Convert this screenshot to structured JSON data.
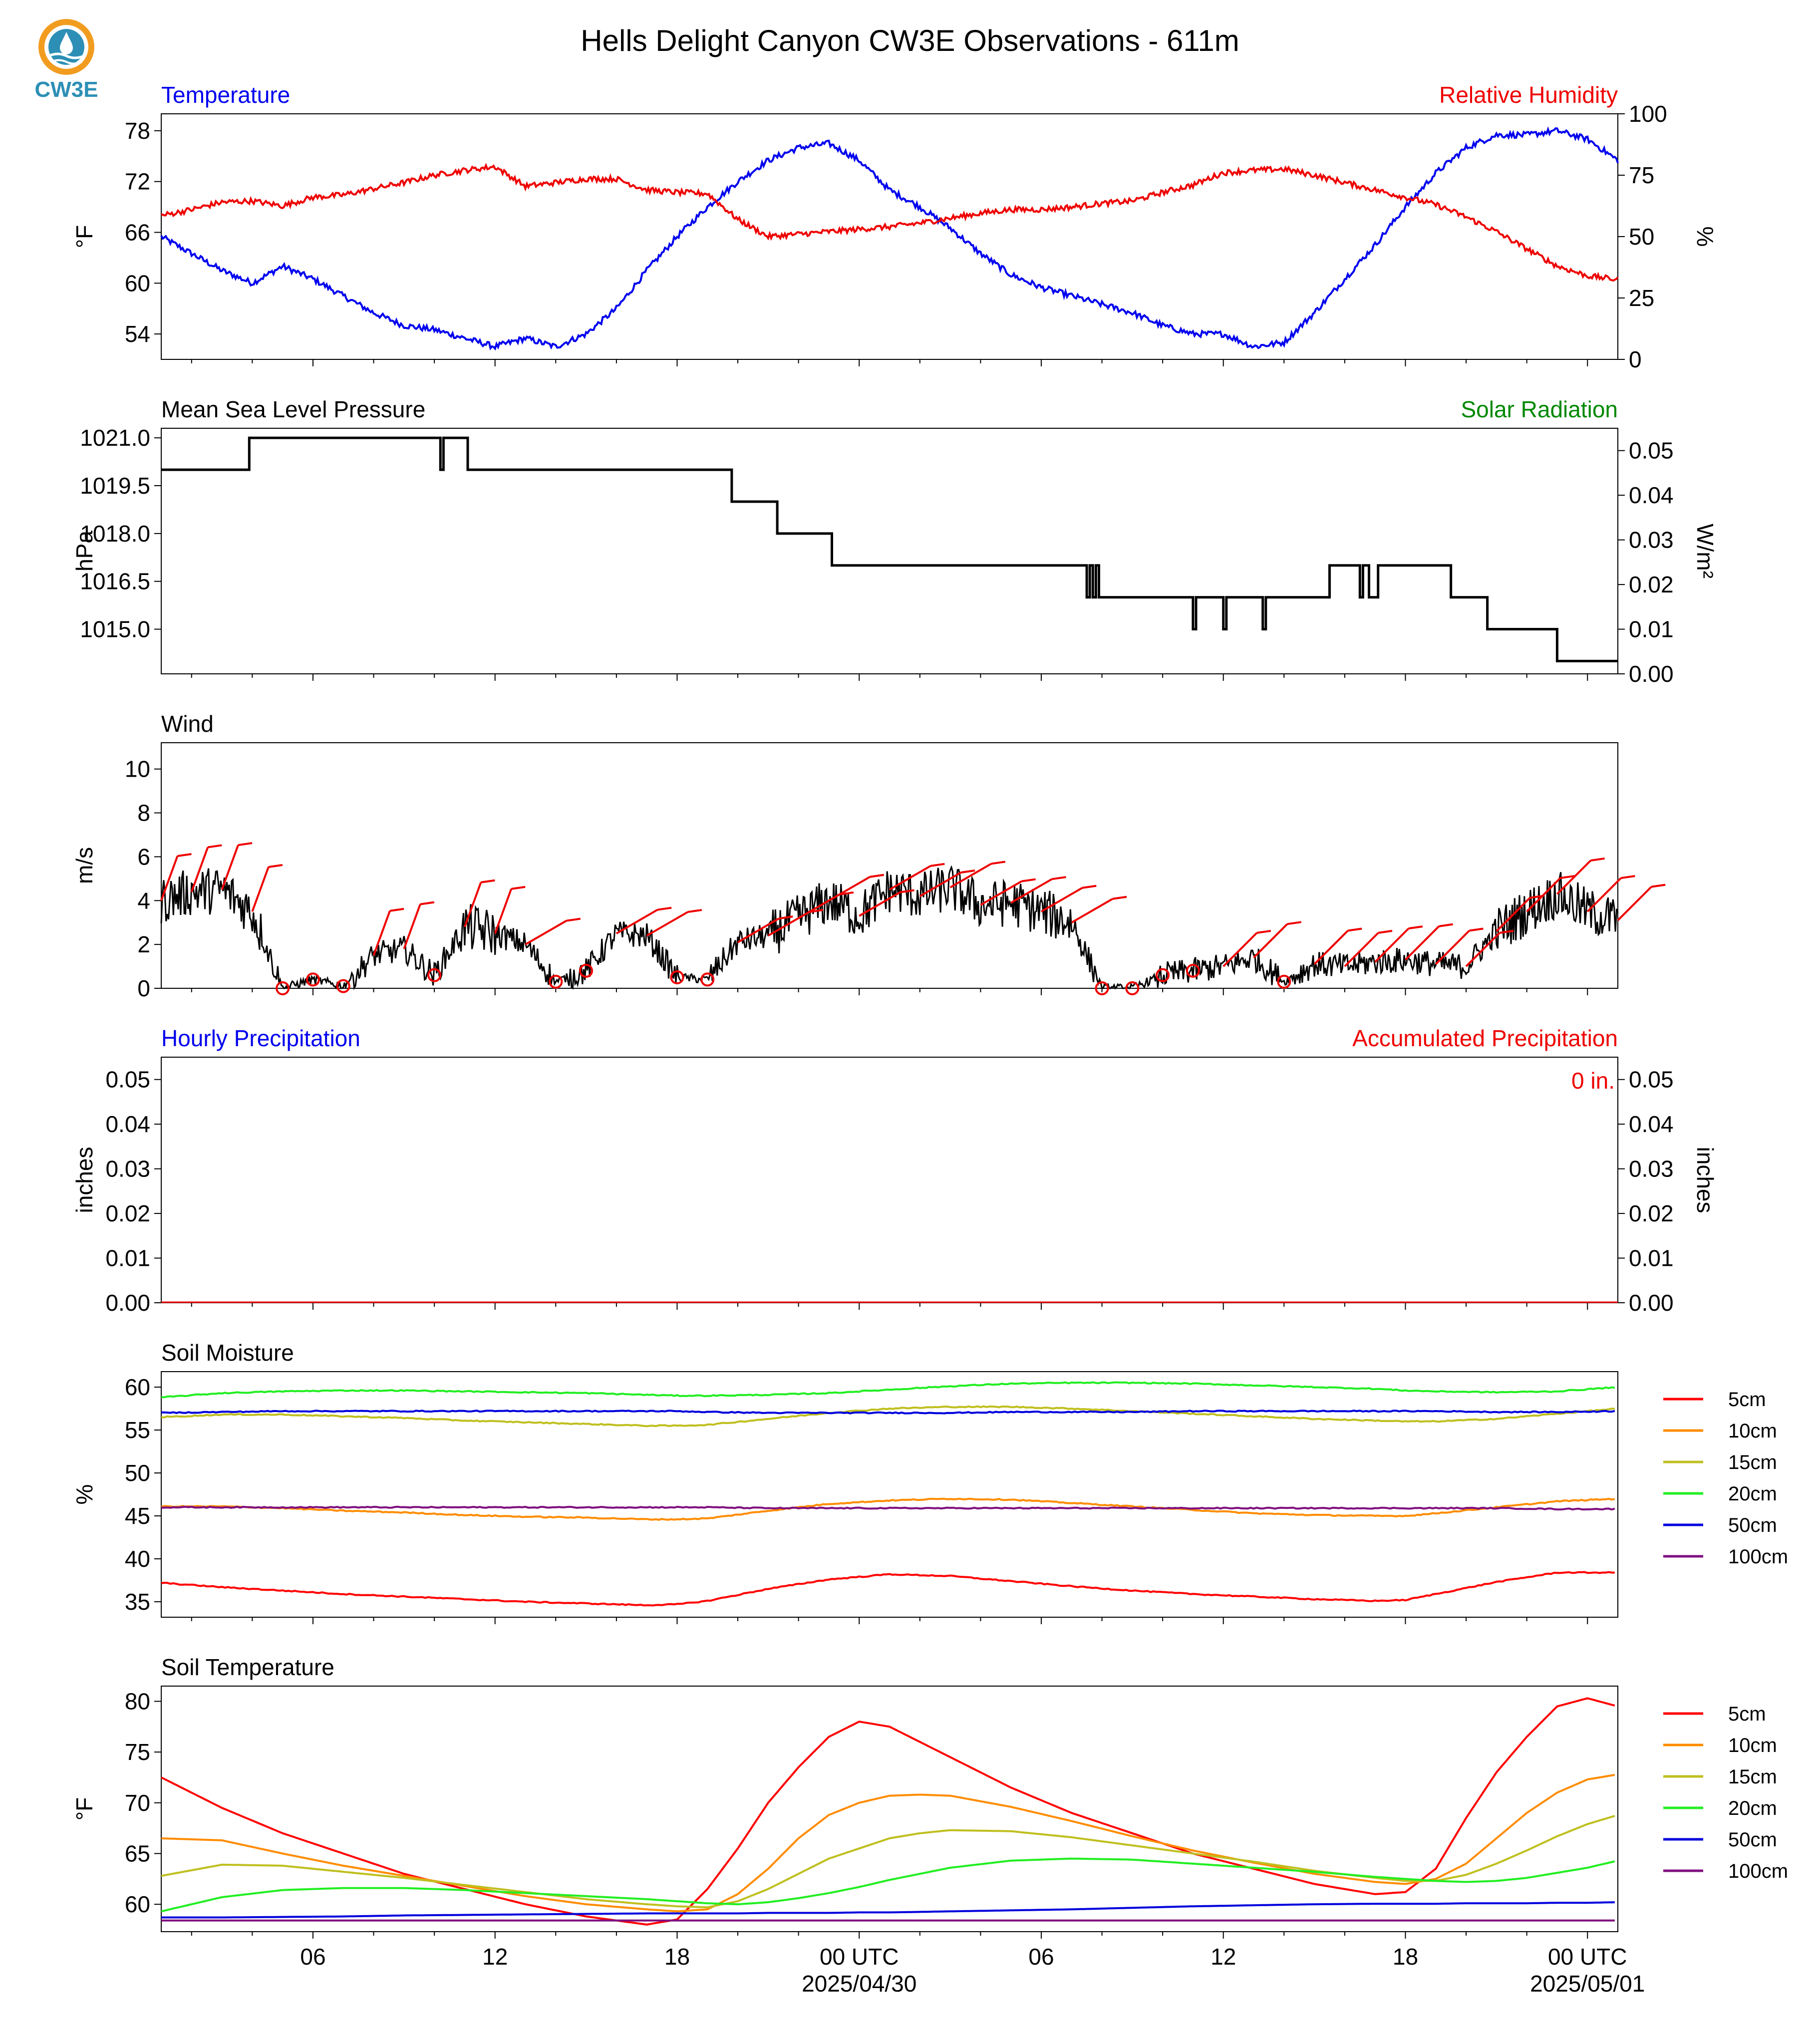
{
  "title": "Hells Delight Canyon CW3E Observations - 611m",
  "logo": {
    "text": "CW3E",
    "icon": "cw3e-logo-icon"
  },
  "colors": {
    "blue": "#0000ee",
    "red": "#ee0000",
    "green": "#008800",
    "black": "#000000",
    "soil": {
      "5cm": "#ff0000",
      "10cm": "#ff8c00",
      "15cm": "#bfbf1f",
      "20cm": "#22ee22",
      "50cm": "#0000dd",
      "100cm": "#7f0f7f"
    }
  },
  "x_axis": {
    "start": "2025-04-29T01:00Z",
    "end": "2025-05-01T01:00Z",
    "tick_labels": [
      "06",
      "12",
      "18",
      "00 UTC",
      "06",
      "12",
      "18",
      "00 UTC"
    ],
    "date_labels": [
      "2025/04/30",
      "2025/05/01"
    ]
  },
  "chart_data": [
    {
      "type": "line",
      "panel": "temperature-humidity",
      "left_title": "Temperature",
      "right_title": "Relative Humidity",
      "ylabel_left": "°F",
      "ylabel_right": "%",
      "ylim_left": [
        51,
        80
      ],
      "ylim_right": [
        0,
        100
      ],
      "yticks_left": [
        54,
        60,
        66,
        72,
        78
      ],
      "yticks_right": [
        0,
        25,
        50,
        75,
        100
      ],
      "hours": [
        0,
        1,
        2,
        3,
        4,
        5,
        6,
        7,
        8,
        9,
        10,
        11,
        12,
        13,
        14,
        15,
        16,
        17,
        18,
        19,
        20,
        21,
        22,
        23,
        24,
        25,
        26,
        27,
        28,
        29,
        30,
        31,
        32,
        33,
        34,
        35,
        36,
        37,
        38,
        39,
        40,
        41,
        42,
        43,
        44,
        45,
        46,
        47,
        48
      ],
      "series": [
        {
          "name": "Temperature",
          "axis": "left",
          "color": "blue",
          "values": [
            65.5,
            63.5,
            61.5,
            60.0,
            62.0,
            60.5,
            58.5,
            56.5,
            55.0,
            54.5,
            53.5,
            52.5,
            53.5,
            52.5,
            54.0,
            57.0,
            61.5,
            65.5,
            69.0,
            72.0,
            74.5,
            76.0,
            76.5,
            74.5,
            71.0,
            69.0,
            66.5,
            63.5,
            61.0,
            59.5,
            58.5,
            57.5,
            56.5,
            55.0,
            54.0,
            54.0,
            52.5,
            53.0,
            56.5,
            60.5,
            64.5,
            69.0,
            73.0,
            76.0,
            77.5,
            77.5,
            78.0,
            77.0,
            74.5
          ]
        },
        {
          "name": "Relative Humidity",
          "axis": "right",
          "color": "red",
          "values": [
            58.5,
            61.0,
            64.0,
            64.5,
            62.5,
            66.0,
            67.0,
            69.5,
            72.0,
            75.0,
            77.0,
            78.5,
            70.5,
            72.0,
            73.5,
            73.5,
            69.0,
            68.0,
            67.5,
            57.0,
            50.0,
            51.0,
            52.0,
            53.0,
            54.0,
            55.5,
            57.5,
            59.5,
            61.0,
            61.0,
            62.0,
            63.5,
            64.5,
            68.0,
            71.0,
            76.0,
            77.0,
            77.5,
            75.0,
            72.0,
            69.0,
            66.0,
            63.0,
            58.0,
            52.0,
            45.0,
            38.0,
            34.0,
            32.5
          ]
        }
      ]
    },
    {
      "type": "line",
      "panel": "pressure-solar",
      "left_title": "Mean Sea Level Pressure",
      "right_title": "Solar Radiation",
      "ylabel_left": "hPa",
      "ylabel_right": "W/m²",
      "ylim_left": [
        1013.6,
        1021.3
      ],
      "ylim_right": [
        0.0,
        0.055
      ],
      "yticks_left": [
        1015.0,
        1016.5,
        1018.0,
        1019.5,
        1021.0
      ],
      "yticks_right": [
        0.0,
        0.01,
        0.02,
        0.03,
        0.04,
        0.05
      ],
      "series": [
        {
          "name": "Mean Sea Level Pressure",
          "axis": "left",
          "color": "black",
          "shape": "step",
          "points": [
            [
              0,
              1020.0
            ],
            [
              2.9,
              1021.0
            ],
            [
              9.2,
              1021.0
            ],
            [
              9.2,
              1020.0
            ],
            [
              9.3,
              1021.0
            ],
            [
              10.1,
              1021.0
            ],
            [
              10.1,
              1020.0
            ],
            [
              18.8,
              1020.0
            ],
            [
              18.8,
              1019.0
            ],
            [
              20.3,
              1019.0
            ],
            [
              20.3,
              1018.0
            ],
            [
              22.1,
              1018.0
            ],
            [
              22.1,
              1017.0
            ],
            [
              30.5,
              1017.0
            ],
            [
              30.5,
              1016.0
            ],
            [
              30.6,
              1017.0
            ],
            [
              30.7,
              1016.0
            ],
            [
              30.8,
              1017.0
            ],
            [
              30.9,
              1016.0
            ],
            [
              34.0,
              1016.0
            ],
            [
              34.0,
              1015.0
            ],
            [
              34.1,
              1016.0
            ],
            [
              35.0,
              1016.0
            ],
            [
              35.0,
              1015.0
            ],
            [
              35.1,
              1016.0
            ],
            [
              36.3,
              1016.0
            ],
            [
              36.3,
              1015.0
            ],
            [
              36.4,
              1016.0
            ],
            [
              38.5,
              1016.0
            ],
            [
              38.5,
              1017.0
            ],
            [
              39.5,
              1017.0
            ],
            [
              39.5,
              1016.0
            ],
            [
              39.6,
              1017.0
            ],
            [
              39.8,
              1017.0
            ],
            [
              39.8,
              1016.0
            ],
            [
              40.1,
              1016.0
            ],
            [
              40.1,
              1017.0
            ],
            [
              42.5,
              1017.0
            ],
            [
              42.5,
              1016.0
            ],
            [
              43.7,
              1016.0
            ],
            [
              43.7,
              1015.0
            ],
            [
              46.0,
              1015.0
            ],
            [
              46.0,
              1014.0
            ],
            [
              48.0,
              1014.0
            ]
          ]
        }
      ]
    },
    {
      "type": "line",
      "panel": "wind",
      "left_title": "Wind",
      "ylabel": "m/s",
      "ylim": [
        0,
        11.2
      ],
      "yticks": [
        0,
        2,
        4,
        6,
        8,
        10
      ],
      "hours": [
        0,
        1,
        2,
        3,
        4,
        5,
        6,
        7,
        8,
        9,
        10,
        11,
        12,
        13,
        14,
        15,
        16,
        17,
        18,
        19,
        20,
        21,
        22,
        23,
        24,
        25,
        26,
        27,
        28,
        29,
        30,
        31,
        32,
        33,
        34,
        35,
        36,
        37,
        38,
        39,
        40,
        41,
        42,
        43,
        44,
        45,
        46,
        47,
        48
      ],
      "series": [
        {
          "name": "Wind Speed",
          "color": "black",
          "values": [
            4.0,
            4.4,
            4.5,
            3.5,
            0.0,
            0.4,
            0.1,
            1.5,
            1.8,
            0.6,
            2.8,
            2.5,
            2.0,
            0.3,
            0.8,
            2.5,
            2.4,
            0.5,
            0.4,
            2.1,
            2.4,
            3.2,
            4.0,
            3.3,
            4.5,
            4.2,
            4.6,
            3.8,
            3.9,
            3.5,
            3.0,
            0.0,
            0.0,
            0.6,
            0.8,
            1.0,
            1.4,
            0.3,
            1.1,
            1.0,
            1.2,
            1.3,
            1.1,
            1.0,
            2.6,
            3.5,
            4.3,
            3.5,
            3.1
          ]
        },
        {
          "name": "Wind Barbs",
          "color": "red",
          "shape": "barbs"
        }
      ]
    },
    {
      "type": "line",
      "panel": "precipitation",
      "left_title": "Hourly Precipitation",
      "right_title": "Accumulated Precipitation",
      "ylabel_left": "inches",
      "ylabel_right": "inches",
      "ylim": [
        0,
        0.055
      ],
      "yticks": [
        0.0,
        0.01,
        0.02,
        0.03,
        0.04,
        0.05
      ],
      "annotation": "0 in.",
      "series": [
        {
          "name": "Hourly Precipitation",
          "color": "blue",
          "values": [
            0,
            0
          ]
        },
        {
          "name": "Accumulated Precipitation",
          "color": "red",
          "values": [
            0,
            0
          ]
        }
      ]
    },
    {
      "type": "line",
      "panel": "soil-moisture",
      "left_title": "Soil Moisture",
      "ylabel": "%",
      "ylim": [
        33.2,
        61.8
      ],
      "yticks": [
        35,
        40,
        45,
        50,
        55,
        60
      ],
      "hours": [
        0,
        2,
        4,
        6,
        8,
        10,
        12,
        14,
        16,
        17,
        18,
        20,
        22,
        24,
        26,
        28,
        30,
        32,
        34,
        36,
        38,
        40,
        41,
        42,
        44,
        46,
        48
      ],
      "series": [
        {
          "name": "5cm",
          "color": "5cm",
          "values": [
            37.2,
            36.7,
            36.3,
            35.9,
            35.6,
            35.3,
            35.0,
            34.8,
            34.6,
            34.7,
            35.1,
            36.5,
            37.6,
            38.2,
            38.0,
            37.4,
            36.8,
            36.3,
            35.9,
            35.6,
            35.3,
            35.1,
            35.2,
            35.9,
            37.3,
            38.4,
            38.4
          ]
        },
        {
          "name": "10cm",
          "color": "10cm",
          "values": [
            46.1,
            46.1,
            45.9,
            45.6,
            45.4,
            45.1,
            44.9,
            44.8,
            44.6,
            44.6,
            44.7,
            45.6,
            46.4,
            46.8,
            47.0,
            46.9,
            46.5,
            46.1,
            45.7,
            45.3,
            45.1,
            45.0,
            45.0,
            45.3,
            46.0,
            46.7,
            47.0
          ]
        },
        {
          "name": "15cm",
          "color": "15cm",
          "values": [
            56.5,
            56.8,
            56.8,
            56.6,
            56.4,
            56.1,
            55.9,
            55.7,
            55.5,
            55.5,
            55.6,
            56.3,
            57.0,
            57.5,
            57.7,
            57.7,
            57.5,
            57.2,
            56.9,
            56.6,
            56.3,
            56.1,
            56.0,
            56.0,
            56.3,
            56.9,
            57.5
          ]
        },
        {
          "name": "20cm",
          "color": "20cm",
          "values": [
            58.8,
            59.3,
            59.5,
            59.6,
            59.6,
            59.5,
            59.4,
            59.3,
            59.1,
            59.0,
            59.0,
            59.1,
            59.3,
            59.7,
            60.1,
            60.4,
            60.5,
            60.5,
            60.4,
            60.2,
            60.0,
            59.8,
            59.6,
            59.5,
            59.4,
            59.5,
            60.0
          ]
        },
        {
          "name": "50cm",
          "color": "50cm",
          "values": [
            57.0,
            57.1,
            57.2,
            57.2,
            57.2,
            57.2,
            57.2,
            57.2,
            57.2,
            57.2,
            57.1,
            57.0,
            57.0,
            57.0,
            57.0,
            57.1,
            57.1,
            57.1,
            57.2,
            57.2,
            57.2,
            57.2,
            57.2,
            57.2,
            57.1,
            57.1,
            57.2
          ]
        },
        {
          "name": "100cm",
          "color": "100cm",
          "values": [
            46.0,
            46.0,
            46.0,
            46.0,
            46.0,
            46.0,
            46.0,
            46.0,
            46.0,
            46.0,
            46.0,
            45.9,
            45.9,
            45.9,
            45.9,
            45.9,
            45.9,
            45.9,
            45.9,
            45.9,
            45.9,
            45.9,
            45.9,
            45.9,
            45.9,
            45.8,
            45.8
          ]
        }
      ]
    },
    {
      "type": "line",
      "panel": "soil-temperature",
      "left_title": "Soil Temperature",
      "ylabel": "°F",
      "ylim": [
        57.3,
        81.5
      ],
      "yticks": [
        60,
        65,
        70,
        75,
        80
      ],
      "hours": [
        0,
        2,
        4,
        6,
        8,
        10,
        12,
        14,
        16,
        17,
        18,
        19,
        20,
        21,
        22,
        23,
        24,
        25,
        26,
        28,
        30,
        32,
        34,
        36,
        38,
        40,
        41,
        42,
        43,
        44,
        45,
        46,
        47,
        48
      ],
      "series": [
        {
          "name": "5cm",
          "color": "5cm",
          "values": [
            72.5,
            69.5,
            67.0,
            65.0,
            63.0,
            61.5,
            60.0,
            58.8,
            58.0,
            58.5,
            61.5,
            65.5,
            70.0,
            73.5,
            76.5,
            78.0,
            77.5,
            76.0,
            74.5,
            71.5,
            69.0,
            67.0,
            65.0,
            63.5,
            62.0,
            61.0,
            61.2,
            63.5,
            68.5,
            73.0,
            76.5,
            79.5,
            80.3,
            79.5
          ]
        },
        {
          "name": "10cm",
          "color": "10cm",
          "values": [
            66.5,
            66.3,
            65.0,
            63.8,
            62.8,
            61.8,
            60.8,
            60.0,
            59.5,
            59.3,
            59.5,
            61.0,
            63.5,
            66.5,
            68.8,
            70.0,
            70.7,
            70.8,
            70.7,
            69.6,
            68.2,
            66.7,
            65.3,
            64.1,
            63.0,
            62.2,
            62.0,
            62.5,
            64.0,
            66.5,
            69.0,
            71.0,
            72.3,
            72.8
          ]
        },
        {
          "name": "15cm",
          "color": "15cm",
          "values": [
            62.8,
            63.9,
            63.8,
            63.2,
            62.6,
            61.9,
            61.2,
            60.5,
            60.0,
            59.8,
            59.7,
            60.3,
            61.5,
            63.0,
            64.5,
            65.5,
            66.5,
            67.0,
            67.3,
            67.2,
            66.6,
            65.8,
            65.0,
            64.2,
            63.3,
            62.6,
            62.3,
            62.3,
            62.9,
            64.0,
            65.3,
            66.7,
            67.9,
            68.8
          ]
        },
        {
          "name": "20cm",
          "color": "20cm",
          "values": [
            59.3,
            60.7,
            61.4,
            61.6,
            61.6,
            61.4,
            61.1,
            60.8,
            60.5,
            60.3,
            60.1,
            60.0,
            60.2,
            60.6,
            61.1,
            61.7,
            62.4,
            63.0,
            63.6,
            64.3,
            64.5,
            64.4,
            64.0,
            63.6,
            63.2,
            62.7,
            62.5,
            62.3,
            62.2,
            62.3,
            62.6,
            63.1,
            63.6,
            64.3
          ]
        },
        {
          "name": "50cm",
          "color": "50cm",
          "values": [
            58.7,
            58.7,
            58.75,
            58.8,
            58.9,
            58.95,
            59.0,
            59.05,
            59.1,
            59.1,
            59.1,
            59.1,
            59.15,
            59.15,
            59.15,
            59.2,
            59.2,
            59.25,
            59.3,
            59.4,
            59.5,
            59.65,
            59.8,
            59.9,
            60.0,
            60.05,
            60.05,
            60.05,
            60.1,
            60.1,
            60.1,
            60.15,
            60.15,
            60.2
          ]
        },
        {
          "name": "100cm",
          "color": "100cm",
          "values": [
            58.4,
            58.4,
            58.4,
            58.4,
            58.4,
            58.4,
            58.4,
            58.4,
            58.4,
            58.4,
            58.4,
            58.4,
            58.4,
            58.4,
            58.4,
            58.4,
            58.4,
            58.4,
            58.4,
            58.4,
            58.4,
            58.4,
            58.4,
            58.4,
            58.4,
            58.4,
            58.4,
            58.4,
            58.4,
            58.4,
            58.4,
            58.4,
            58.4,
            58.4
          ]
        }
      ]
    }
  ],
  "legends": {
    "soil_moisture": [
      "5cm",
      "10cm",
      "15cm",
      "20cm",
      "50cm",
      "100cm"
    ],
    "soil_temperature": [
      "5cm",
      "10cm",
      "15cm",
      "20cm",
      "50cm",
      "100cm"
    ]
  }
}
